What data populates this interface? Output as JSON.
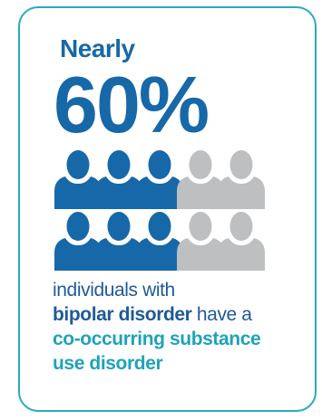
{
  "heading": {
    "prefix": "Nearly",
    "stat": "60%"
  },
  "icon_grid": {
    "rows": 2,
    "per_row": 5,
    "filled_fraction": 0.6,
    "filled_color": "#1768a8",
    "empty_color": "#bdbfc1",
    "icon": "person-icon"
  },
  "caption": {
    "line1": "individuals with",
    "line2_bold": "bipolar disorder",
    "line2_rest": " have a",
    "line3": "co-occurring substance",
    "line4": "use disorder"
  },
  "colors": {
    "border": "#2aa9bd",
    "primary": "#1768a8",
    "accent": "#1fa3b8",
    "muted": "#bdbfc1"
  }
}
